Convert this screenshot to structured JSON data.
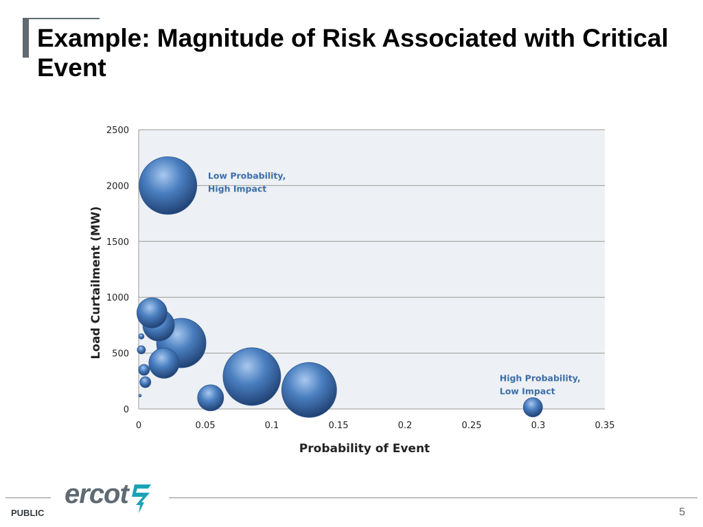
{
  "slide": {
    "title": "Example: Magnitude of Risk Associated with Critical Event",
    "footer_label": "PUBLIC",
    "page_number": "5",
    "logo_text": "ercot"
  },
  "chart_data": {
    "type": "scatter",
    "subtype": "bubble",
    "xlabel": "Probability of Event",
    "ylabel": "Load Curtailment (MW)",
    "xlim": [
      0,
      0.35
    ],
    "ylim": [
      0,
      2500
    ],
    "x_ticks": [
      "0",
      "0.05",
      "0.1",
      "0.15",
      "0.2",
      "0.25",
      "0.3",
      "0.35"
    ],
    "y_ticks": [
      "0",
      "500",
      "1000",
      "1500",
      "2000",
      "2500"
    ],
    "grid": "horizontal",
    "bubble_color": "#4a7fc0",
    "points": [
      {
        "x": 0.022,
        "y": 2000,
        "size": 42
      },
      {
        "x": 0.01,
        "y": 860,
        "size": 22
      },
      {
        "x": 0.015,
        "y": 750,
        "size": 23
      },
      {
        "x": 0.032,
        "y": 590,
        "size": 36
      },
      {
        "x": 0.019,
        "y": 410,
        "size": 22
      },
      {
        "x": 0.002,
        "y": 650,
        "size": 4
      },
      {
        "x": 0.002,
        "y": 530,
        "size": 6
      },
      {
        "x": 0.004,
        "y": 350,
        "size": 8
      },
      {
        "x": 0.005,
        "y": 240,
        "size": 8
      },
      {
        "x": 0.001,
        "y": 120,
        "size": 2
      },
      {
        "x": 0.054,
        "y": 100,
        "size": 19
      },
      {
        "x": 0.085,
        "y": 290,
        "size": 42
      },
      {
        "x": 0.128,
        "y": 170,
        "size": 40
      },
      {
        "x": 0.296,
        "y": 15,
        "size": 14
      }
    ],
    "annotations": [
      {
        "lines": [
          "Low Probability,",
          "High Impact"
        ],
        "x": 0.052,
        "y": 2060
      },
      {
        "lines": [
          "High Probability,",
          "Low Impact"
        ],
        "x": 0.271,
        "y": 250
      }
    ]
  }
}
